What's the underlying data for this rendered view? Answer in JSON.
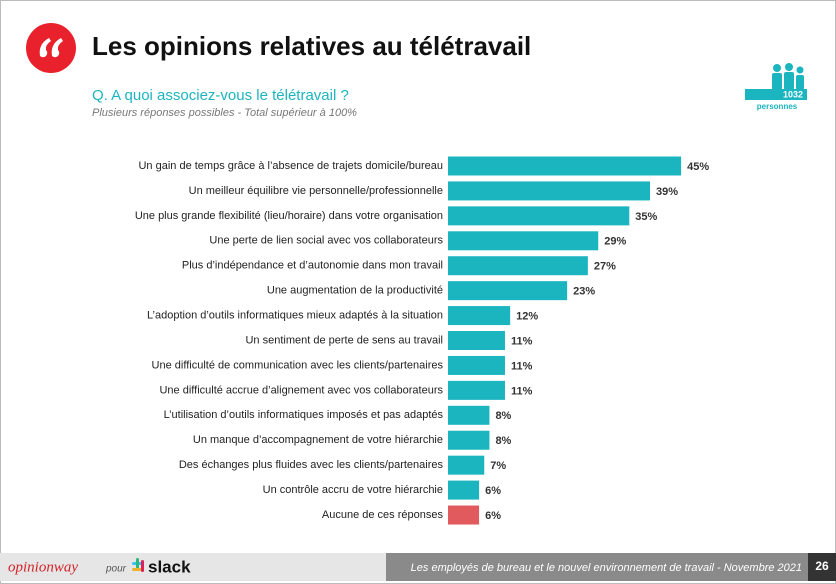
{
  "chart_data": {
    "type": "barh",
    "title": "Les opinions relatives au télétravail",
    "subtitle": "Q. A quoi associez-vous le télétravail ?",
    "note": "Plusieurs réponses possibles - Total supérieur à 100%",
    "categories": [
      "Un gain de temps grâce à l’absence de trajets domicile/bureau",
      "Un meilleur équilibre vie personnelle/professionnelle",
      "Une plus grande flexibilité (lieu/horaire) dans votre organisation",
      "Une perte de lien social avec vos collaborateurs",
      "Plus d’indépendance et d’autonomie dans mon travail",
      "Une augmentation de la productivité",
      "L’adoption d’outils informatiques mieux adaptés à la situation",
      "Un sentiment de perte de sens au travail",
      "Une difficulté de communication avec les clients/partenaires",
      "Une difficulté accrue d’alignement avec vos collaborateurs",
      "L’utilisation d’outils informatiques imposés et pas adaptés",
      "Un manque d’accompagnement de votre hiérarchie",
      "Des échanges plus fluides avec les clients/partenaires",
      "Un contrôle accru de votre hiérarchie",
      "Aucune de ces réponses"
    ],
    "values": [
      45,
      39,
      35,
      29,
      27,
      23,
      12,
      11,
      11,
      11,
      8,
      8,
      7,
      6,
      6
    ],
    "value_labels": [
      "45%",
      "39%",
      "35%",
      "29%",
      "27%",
      "23%",
      "12%",
      "11%",
      "11%",
      "11%",
      "8%",
      "8%",
      "7%",
      "6%",
      "6%"
    ],
    "colors": [
      "#1bb5c0",
      "#1bb5c0",
      "#1bb5c0",
      "#1bb5c0",
      "#1bb5c0",
      "#1bb5c0",
      "#1bb5c0",
      "#1bb5c0",
      "#1bb5c0",
      "#1bb5c0",
      "#1bb5c0",
      "#1bb5c0",
      "#1bb5c0",
      "#1bb5c0",
      "#e05a5e"
    ]
  },
  "badge": {
    "count": "1032",
    "label": "personnes"
  },
  "footer": {
    "brand": "opinionway",
    "for": "pour",
    "partner": "slack",
    "text": "Les employés de bureau et le nouvel environnement de travail - Novembre 2021",
    "page": "26"
  }
}
